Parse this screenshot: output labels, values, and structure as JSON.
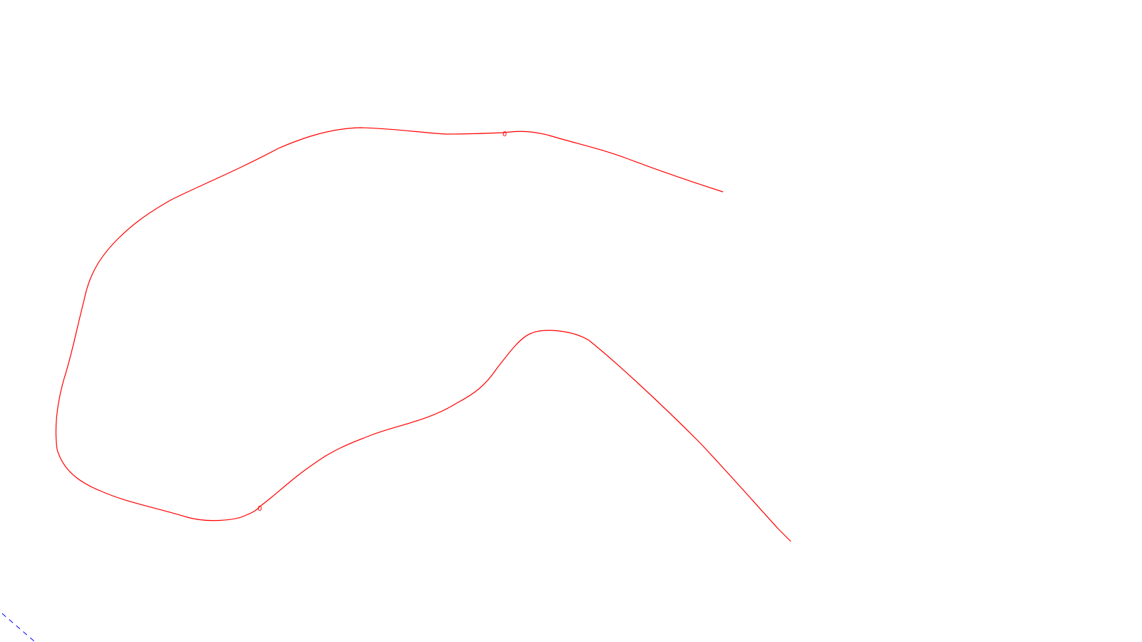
{
  "markers": [
    {
      "label": "0",
      "color": "#ff0000"
    },
    {
      "label": "0",
      "color": "#ff0000"
    }
  ],
  "colors": {
    "background": "#ffffff",
    "curve": "#ff0000",
    "axis": "#0000ff"
  }
}
